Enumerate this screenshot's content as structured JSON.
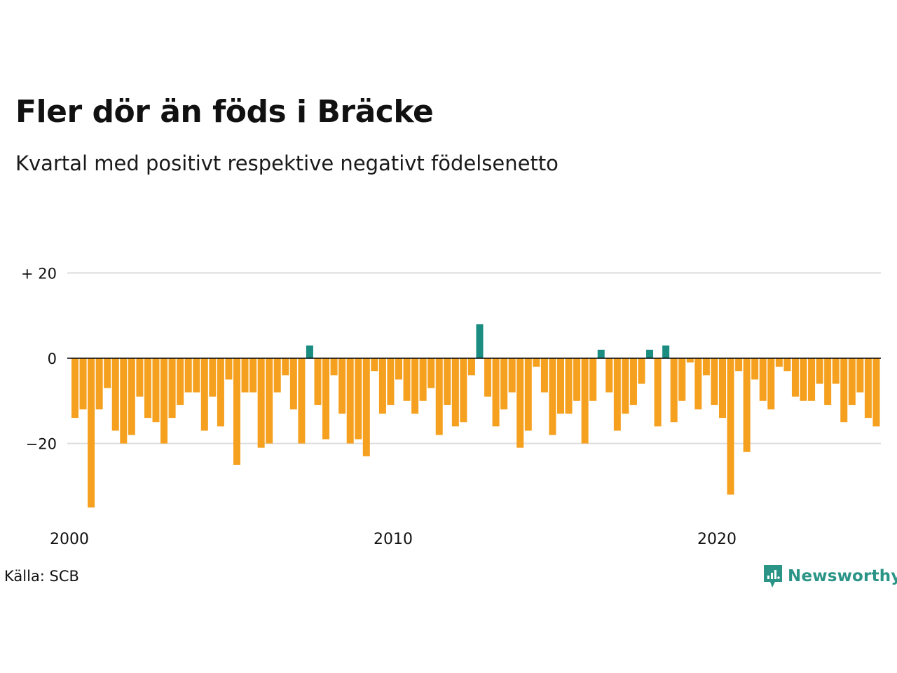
{
  "title": "Fler dör än föds i Bräcke",
  "subtitle": "Kvartal med positivt respektive negativt födelsenetto",
  "source": "Källa: SCB",
  "brand": "Newsworthy",
  "colors": {
    "positive": "#1a8c80",
    "negative": "#f5a01e",
    "grid": "#dddddd",
    "zero": "#000000",
    "brand": "#2a9486"
  },
  "chart_data": {
    "type": "bar",
    "title": "Fler dör än föds i Bräcke",
    "subtitle": "Kvartal med positivt respektive negativt födelsenetto",
    "xlabel": "",
    "ylabel": "",
    "ylim": [
      -37,
      20
    ],
    "y_ticks": [
      {
        "value": 20,
        "label": "+ 20"
      },
      {
        "value": 0,
        "label": "0"
      },
      {
        "value": -20,
        "label": "−20"
      }
    ],
    "x_ticks": [
      "2000",
      "2010",
      "2020"
    ],
    "grid": true,
    "legend": "none",
    "start_period": "2000 Q1",
    "frequency": "quarterly",
    "values": [
      -14,
      -12,
      -35,
      -12,
      -7,
      -17,
      -20,
      -18,
      -9,
      -14,
      -15,
      -20,
      -14,
      -11,
      -8,
      -8,
      -17,
      -9,
      -16,
      -5,
      -25,
      -8,
      -8,
      -21,
      -20,
      -8,
      -4,
      -12,
      -20,
      3,
      -11,
      -19,
      -4,
      -13,
      -20,
      -19,
      -23,
      -3,
      -13,
      -11,
      -5,
      -10,
      -13,
      -10,
      -7,
      -18,
      -11,
      -16,
      -15,
      -4,
      8,
      -9,
      -16,
      -12,
      -8,
      -21,
      -17,
      -2,
      -8,
      -18,
      -13,
      -13,
      -10,
      -20,
      -10,
      2,
      -8,
      -17,
      -13,
      -11,
      -6,
      2,
      -16,
      3,
      -15,
      -10,
      -1,
      -12,
      -4,
      -11,
      -14,
      -32,
      -3,
      -22,
      -5,
      -10,
      -12,
      -2,
      -3,
      -9,
      -10,
      -10,
      -6,
      -11,
      -6,
      -15,
      -11,
      -8,
      -14,
      -16
    ]
  }
}
